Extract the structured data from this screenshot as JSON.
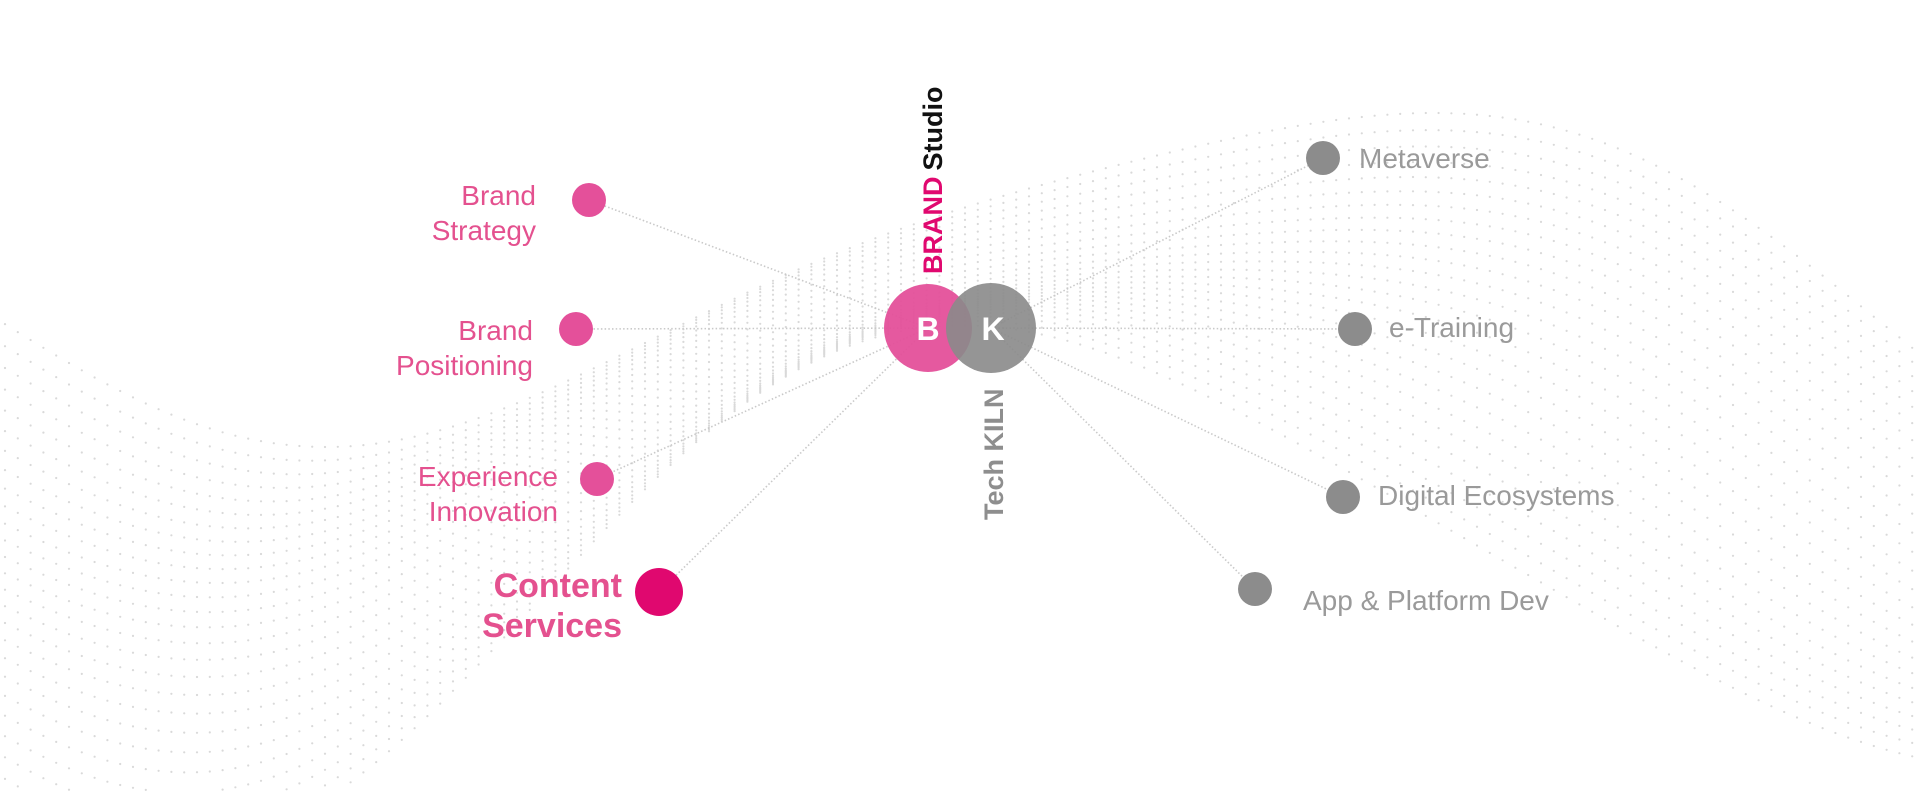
{
  "brand_studio": {
    "label_part1": "BRAND",
    "label_part2": "Studio",
    "initial": "B",
    "color": "#e4509a"
  },
  "tech_kiln": {
    "label": "Tech KILN",
    "initial": "K",
    "color": "#8a8a8a"
  },
  "left_services": [
    {
      "line1": "Brand",
      "line2": "Strategy"
    },
    {
      "line1": "Brand",
      "line2": "Positioning"
    },
    {
      "line1": "Experience",
      "line2": "Innovation"
    },
    {
      "line1": "Content",
      "line2": "Services",
      "highlighted": true
    }
  ],
  "right_services": [
    {
      "label": "Metaverse"
    },
    {
      "label": "e-Training"
    },
    {
      "label": "Digital Ecosystems"
    },
    {
      "label": "App & Platform Dev"
    }
  ],
  "colors": {
    "pink_node": "#e4509a",
    "pink_highlight": "#e0086f",
    "grey_node": "#8c8c8c",
    "pink_text": "#e4518f",
    "grey_text": "#9a9a9a"
  }
}
